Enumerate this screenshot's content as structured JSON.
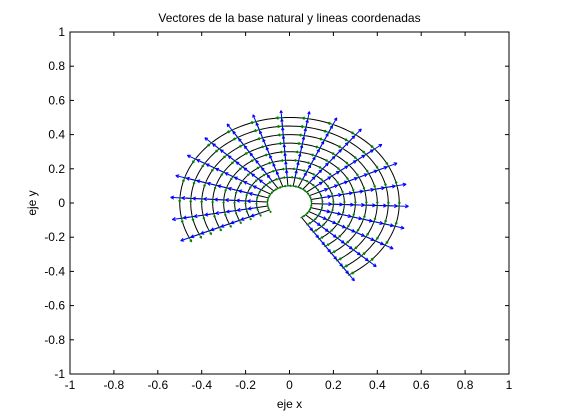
{
  "chart_data": {
    "type": "line",
    "title": "Vectores de la base natural y lineas coordenadas",
    "xlabel": "eje x",
    "ylabel": "eje y",
    "xlim": [
      -1,
      1
    ],
    "ylim": [
      -1,
      1
    ],
    "xticks": [
      -1,
      -0.8,
      -0.6,
      -0.4,
      -0.2,
      0,
      0.2,
      0.4,
      0.6,
      0.8,
      1
    ],
    "yticks": [
      -1,
      -0.8,
      -0.6,
      -0.4,
      -0.2,
      0,
      0.2,
      0.4,
      0.6,
      0.8,
      1
    ],
    "grid": false,
    "coordinate_system": {
      "radius_range": [
        0.1,
        0.5
      ],
      "angle_range_deg": [
        -57,
        204
      ],
      "radial_lines": 20,
      "angular_lines": 9,
      "radial_vector_color": "#0000ff",
      "tangential_vector_color": "#008000",
      "coordinate_line_color": "#000000"
    }
  }
}
